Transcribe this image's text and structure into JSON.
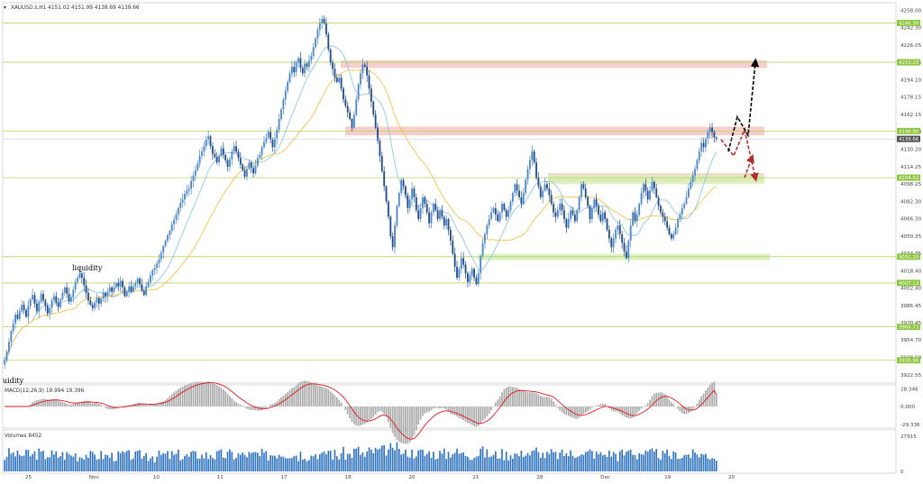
{
  "header": {
    "symbol_line": "XAUUSD.s,H1  4151.02 4151.99 4138.69 4139.66",
    "menu_icon": "triangle-down-icon"
  },
  "subwindows": {
    "macd_label": "MACD(12,26,9) 19.994 19.396",
    "volumes_label": "Volumes 8452"
  },
  "colors": {
    "bull": "#4a86c8",
    "bear": "#1e4b8a",
    "ma_fast": "#8fc8ea",
    "ma_slow": "#f3c44c",
    "level_line": "#b6d36b",
    "level_tag": "#8dc63f",
    "price_tag": "#505050",
    "resistance_zone": "#f7c6c1",
    "support_zone": "#d8f0b8",
    "macd_signal": "#e0191f",
    "histogram": "#a9a9a9",
    "volume": "#2f73c0"
  },
  "annotations": {
    "liquidity_upper": "liquidity",
    "liquidity_lower": "uidity"
  },
  "chart_data": {
    "type": "candlestick",
    "symbol": "XAUUSD.s",
    "timeframe": "H1",
    "last": {
      "open": 4151.02,
      "high": 4151.99,
      "low": 4138.69,
      "close": 4139.66
    },
    "current_price": 4139.66,
    "ylim": [
      3915,
      4265
    ],
    "y_ticks": [
      4258.0,
      4242.3,
      4226.05,
      4210.15,
      4194.1,
      4178.15,
      4162.15,
      4146.2,
      4130.2,
      4114.25,
      4098.25,
      4082.3,
      4066.3,
      4050.35,
      4034.35,
      4018.4,
      4002.4,
      3986.45,
      3970.45,
      3954.7,
      3938.5,
      3922.55
    ],
    "levels": [
      4246.3,
      4210.2,
      4146.9,
      4104.02,
      4031.25,
      4007.13,
      3966.73,
      3935.96
    ],
    "zones": [
      {
        "kind": "resistance",
        "from": 4205.0,
        "to": 4212.0
      },
      {
        "kind": "resistance",
        "from": 4143.0,
        "to": 4151.0
      },
      {
        "kind": "resistance",
        "from": 4100.0,
        "to": 4108.0
      },
      {
        "kind": "support",
        "from": 4098.0,
        "to": 4107.0
      },
      {
        "kind": "support",
        "from": 4028.0,
        "to": 4034.0
      }
    ],
    "closes": [
      3936,
      3944,
      3953,
      3963,
      3970,
      3978,
      3974,
      3981,
      3987,
      3982,
      3976,
      3986,
      3992,
      3996,
      3988,
      3981,
      3990,
      3997,
      3991,
      3986,
      3979,
      3984,
      3991,
      3995,
      3989,
      3985,
      3992,
      3998,
      4003,
      3997,
      3990,
      3994,
      4001,
      4008,
      4012,
      4016,
      4012,
      4005,
      3998,
      3991,
      3987,
      3984,
      3989,
      3993,
      3988,
      3993,
      3998,
      3995,
      3999,
      4003,
      3999,
      4003,
      4007,
      4004,
      4009,
      4003,
      3995,
      3999,
      4004,
      3999,
      4004,
      4007,
      4011,
      4006,
      4000,
      3996,
      4004,
      4008,
      4014,
      4019,
      4021,
      4025,
      4029,
      4035,
      4041,
      4046,
      4051,
      4055,
      4061,
      4065,
      4070,
      4076,
      4081,
      4084,
      4089,
      4092,
      4094,
      4101,
      4106,
      4111,
      4117,
      4124,
      4128,
      4133,
      4139,
      4142,
      4133,
      4126,
      4123,
      4118,
      4124,
      4131,
      4125,
      4120,
      4114,
      4121,
      4128,
      4133,
      4128,
      4122,
      4116,
      4111,
      4105,
      4112,
      4118,
      4113,
      4108,
      4115,
      4122,
      4125,
      4132,
      4137,
      4141,
      4146,
      4139,
      4132,
      4140,
      4148,
      4158,
      4167,
      4176,
      4184,
      4192,
      4200,
      4206,
      4201,
      4210,
      4214,
      4205,
      4200,
      4209,
      4206,
      4212,
      4216,
      4224,
      4232,
      4240,
      4246,
      4250,
      4246,
      4236,
      4222,
      4210,
      4204,
      4196,
      4192,
      4196,
      4186,
      4176,
      4170,
      4164,
      4158,
      4150,
      4162,
      4176,
      4190,
      4200,
      4208,
      4206,
      4198,
      4186,
      4174,
      4162,
      4150,
      4138,
      4124,
      4110,
      4096,
      4082,
      4068,
      4050,
      4040,
      4060,
      4078,
      4090,
      4102,
      4096,
      4088,
      4076,
      4084,
      4094,
      4086,
      4074,
      4066,
      4076,
      4086,
      4080,
      4072,
      4062,
      4072,
      4080,
      4074,
      4066,
      4074,
      4068,
      4060,
      4066,
      4056,
      4046,
      4034,
      4022,
      4012,
      4020,
      4030,
      4024,
      4016,
      4008,
      4014,
      4020,
      4012,
      4006,
      4016,
      4032,
      4044,
      4052,
      4060,
      4066,
      4072,
      4076,
      4070,
      4064,
      4072,
      4080,
      4074,
      4068,
      4074,
      4082,
      4090,
      4098,
      4092,
      4086,
      4080,
      4090,
      4102,
      4112,
      4120,
      4128,
      4118,
      4104,
      4096,
      4086,
      4092,
      4098,
      4094,
      4088,
      4080,
      4072,
      4068,
      4074,
      4080,
      4074,
      4066,
      4058,
      4066,
      4074,
      4070,
      4064,
      4074,
      4086,
      4098,
      4094,
      4086,
      4078,
      4066,
      4076,
      4084,
      4078,
      4070,
      4064,
      4072,
      4066,
      4056,
      4048,
      4040,
      4048,
      4056,
      4060,
      4052,
      4044,
      4036,
      4030,
      4046,
      4060,
      4072,
      4064,
      4070,
      4080,
      4090,
      4098,
      4092,
      4084,
      4092,
      4100,
      4094,
      4086,
      4078,
      4072,
      4068,
      4064,
      4058,
      4052,
      4048,
      4052,
      4058,
      4066,
      4070,
      4076,
      4080,
      4086,
      4094,
      4100,
      4106,
      4112,
      4120,
      4128,
      4136,
      4132,
      4140,
      4146,
      4150,
      4146,
      4141,
      4139.66
    ],
    "scenario_primary": [
      [
        4139,
        4124
      ],
      [
        4145,
        4148
      ],
      [
        4148,
        4104
      ],
      [
        4158,
        4210
      ]
    ],
    "scenario_alternative": [
      [
        4145,
        4148
      ],
      [
        4148,
        4160
      ],
      [
        4153,
        4148
      ],
      [
        4158,
        4210
      ]
    ],
    "macd": {
      "ylim": [
        -32,
        32
      ],
      "ticks": [
        28.346,
        0.0,
        -29.336
      ],
      "value": 19.994,
      "signal": 19.396
    },
    "volume": {
      "ylim": [
        0,
        30000
      ],
      "ticks": [
        27915,
        0
      ],
      "last": 8452
    },
    "x_labels": [
      "25",
      "Nov",
      "10",
      "11",
      "17",
      "18",
      "20",
      "21",
      "28",
      "Dec",
      "19",
      "20"
    ]
  }
}
